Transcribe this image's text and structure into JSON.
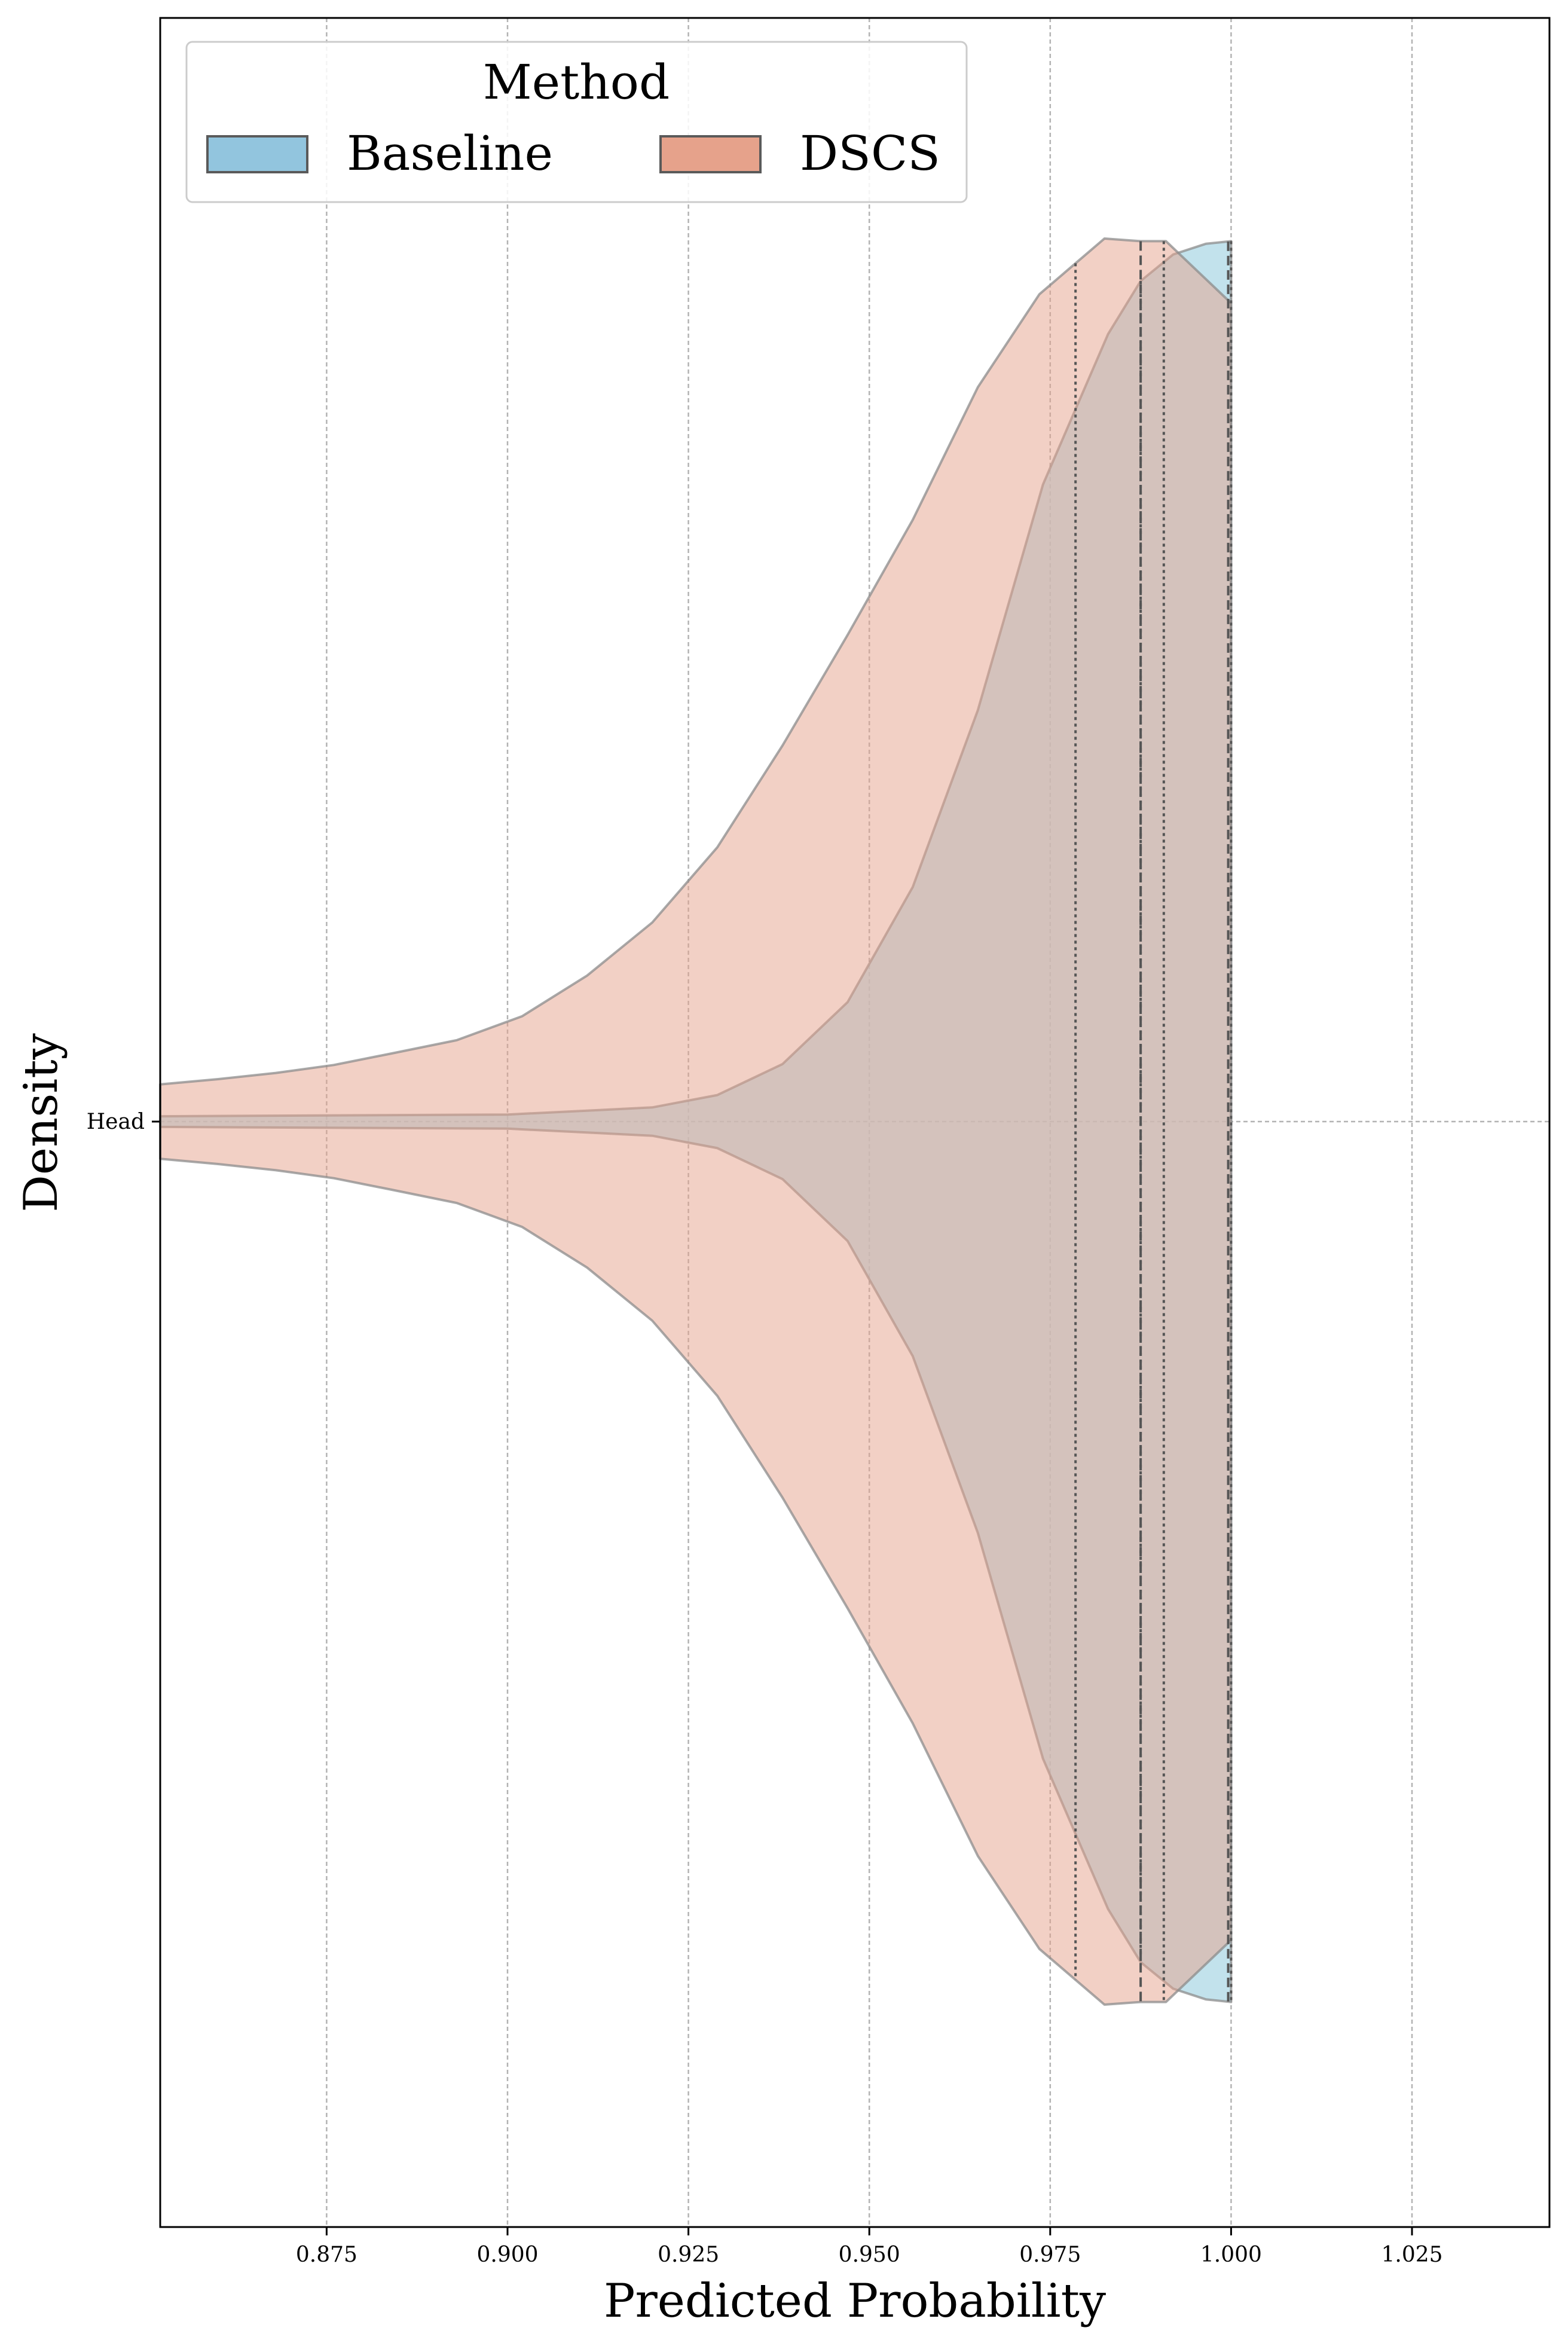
{
  "chart_data": {
    "type": "violin",
    "xlabel": "Predicted Probability",
    "ylabel": "Density",
    "xlim": [
      0.852,
      1.044
    ],
    "x_ticks": [
      "0.875",
      "0.900",
      "0.925",
      "0.950",
      "0.975",
      "1.000",
      "1.025"
    ],
    "x_tick_values": [
      0.875,
      0.9,
      0.925,
      0.95,
      0.975,
      1.0,
      1.025
    ],
    "y_categories": [
      "Head"
    ],
    "grid": true,
    "legend": {
      "title": "Method",
      "placement": "top-left",
      "entries": [
        {
          "label": "Baseline",
          "color": "#92c5de"
        },
        {
          "label": "DSCS",
          "color": "#e6a28b"
        }
      ]
    },
    "series": [
      {
        "name": "Baseline",
        "color": "#add8e6",
        "profile": {
          "x": [
            0.852,
            0.9,
            0.92,
            0.929,
            0.938,
            0.947,
            0.956,
            0.965,
            0.974,
            0.983,
            0.9875,
            0.992,
            0.9965,
            1.0
          ],
          "half_width": [
            0.006,
            0.008,
            0.016,
            0.03,
            0.065,
            0.135,
            0.265,
            0.465,
            0.72,
            0.89,
            0.95,
            0.98,
            0.992,
            0.995
          ]
        },
        "quartiles": [
          0.9875,
          0.9996,
          1.0
        ]
      },
      {
        "name": "DSCS",
        "color": "#e6a28b",
        "profile": {
          "x": [
            0.852,
            0.86,
            0.868,
            0.876,
            0.884,
            0.893,
            0.902,
            0.911,
            0.92,
            0.929,
            0.938,
            0.947,
            0.956,
            0.965,
            0.9735,
            0.9825,
            0.9875,
            0.991,
            1.0
          ],
          "half_width": [
            0.042,
            0.048,
            0.055,
            0.064,
            0.077,
            0.092,
            0.119,
            0.165,
            0.225,
            0.31,
            0.425,
            0.55,
            0.68,
            0.83,
            0.935,
            0.998,
            0.995,
            0.995,
            0.925
          ]
        },
        "quartiles": [
          0.9785,
          0.9875,
          0.9907
        ]
      }
    ]
  }
}
